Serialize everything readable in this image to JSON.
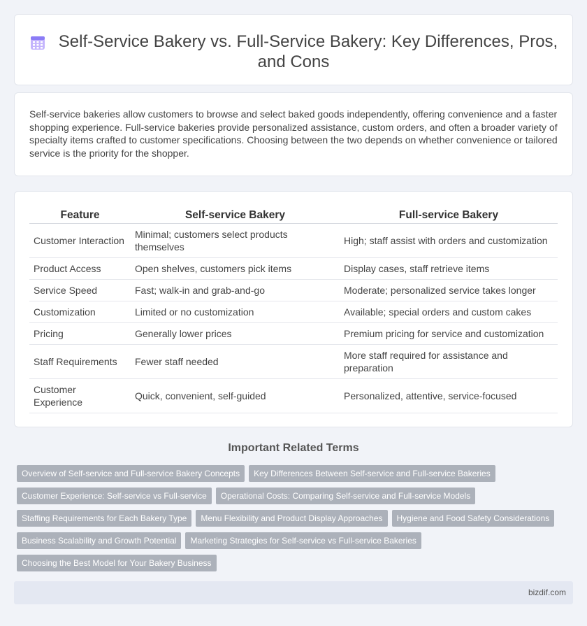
{
  "header": {
    "title": "Self-Service Bakery vs. Full-Service Bakery: Key Differences, Pros, and Cons",
    "icon": "calendar-grid-icon",
    "icon_color": "#a78bfa"
  },
  "intro": {
    "text": "Self-service bakeries allow customers to browse and select baked goods independently, offering convenience and a faster shopping experience. Full-service bakeries provide personalized assistance, custom orders, and often a broader variety of specialty items crafted to customer specifications. Choosing between the two depends on whether convenience or tailored service is the priority for the shopper."
  },
  "table": {
    "headers": [
      "Feature",
      "Self-service Bakery",
      "Full-service Bakery"
    ],
    "rows": [
      [
        "Customer Interaction",
        "Minimal; customers select products themselves",
        "High; staff assist with orders and customization"
      ],
      [
        "Product Access",
        "Open shelves, customers pick items",
        "Display cases, staff retrieve items"
      ],
      [
        "Service Speed",
        "Fast; walk-in and grab-and-go",
        "Moderate; personalized service takes longer"
      ],
      [
        "Customization",
        "Limited or no customization",
        "Available; special orders and custom cakes"
      ],
      [
        "Pricing",
        "Generally lower prices",
        "Premium pricing for service and customization"
      ],
      [
        "Staff Requirements",
        "Fewer staff needed",
        "More staff required for assistance and preparation"
      ],
      [
        "Customer Experience",
        "Quick, convenient, self-guided",
        "Personalized, attentive, service-focused"
      ]
    ]
  },
  "related": {
    "title": "Important Related Terms",
    "tags": [
      "Overview of Self-service and Full-service Bakery Concepts",
      "Key Differences Between Self-service and Full-service Bakeries",
      "Customer Experience: Self-service vs Full-service",
      "Operational Costs: Comparing Self-service and Full-service Models",
      "Staffing Requirements for Each Bakery Type",
      "Menu Flexibility and Product Display Approaches",
      "Hygiene and Food Safety Considerations",
      "Business Scalability and Growth Potential",
      "Marketing Strategies for Self-service vs Full-service Bakeries",
      "Choosing the Best Model for Your Bakery Business"
    ]
  },
  "footer": {
    "site": "bizdif.com"
  }
}
